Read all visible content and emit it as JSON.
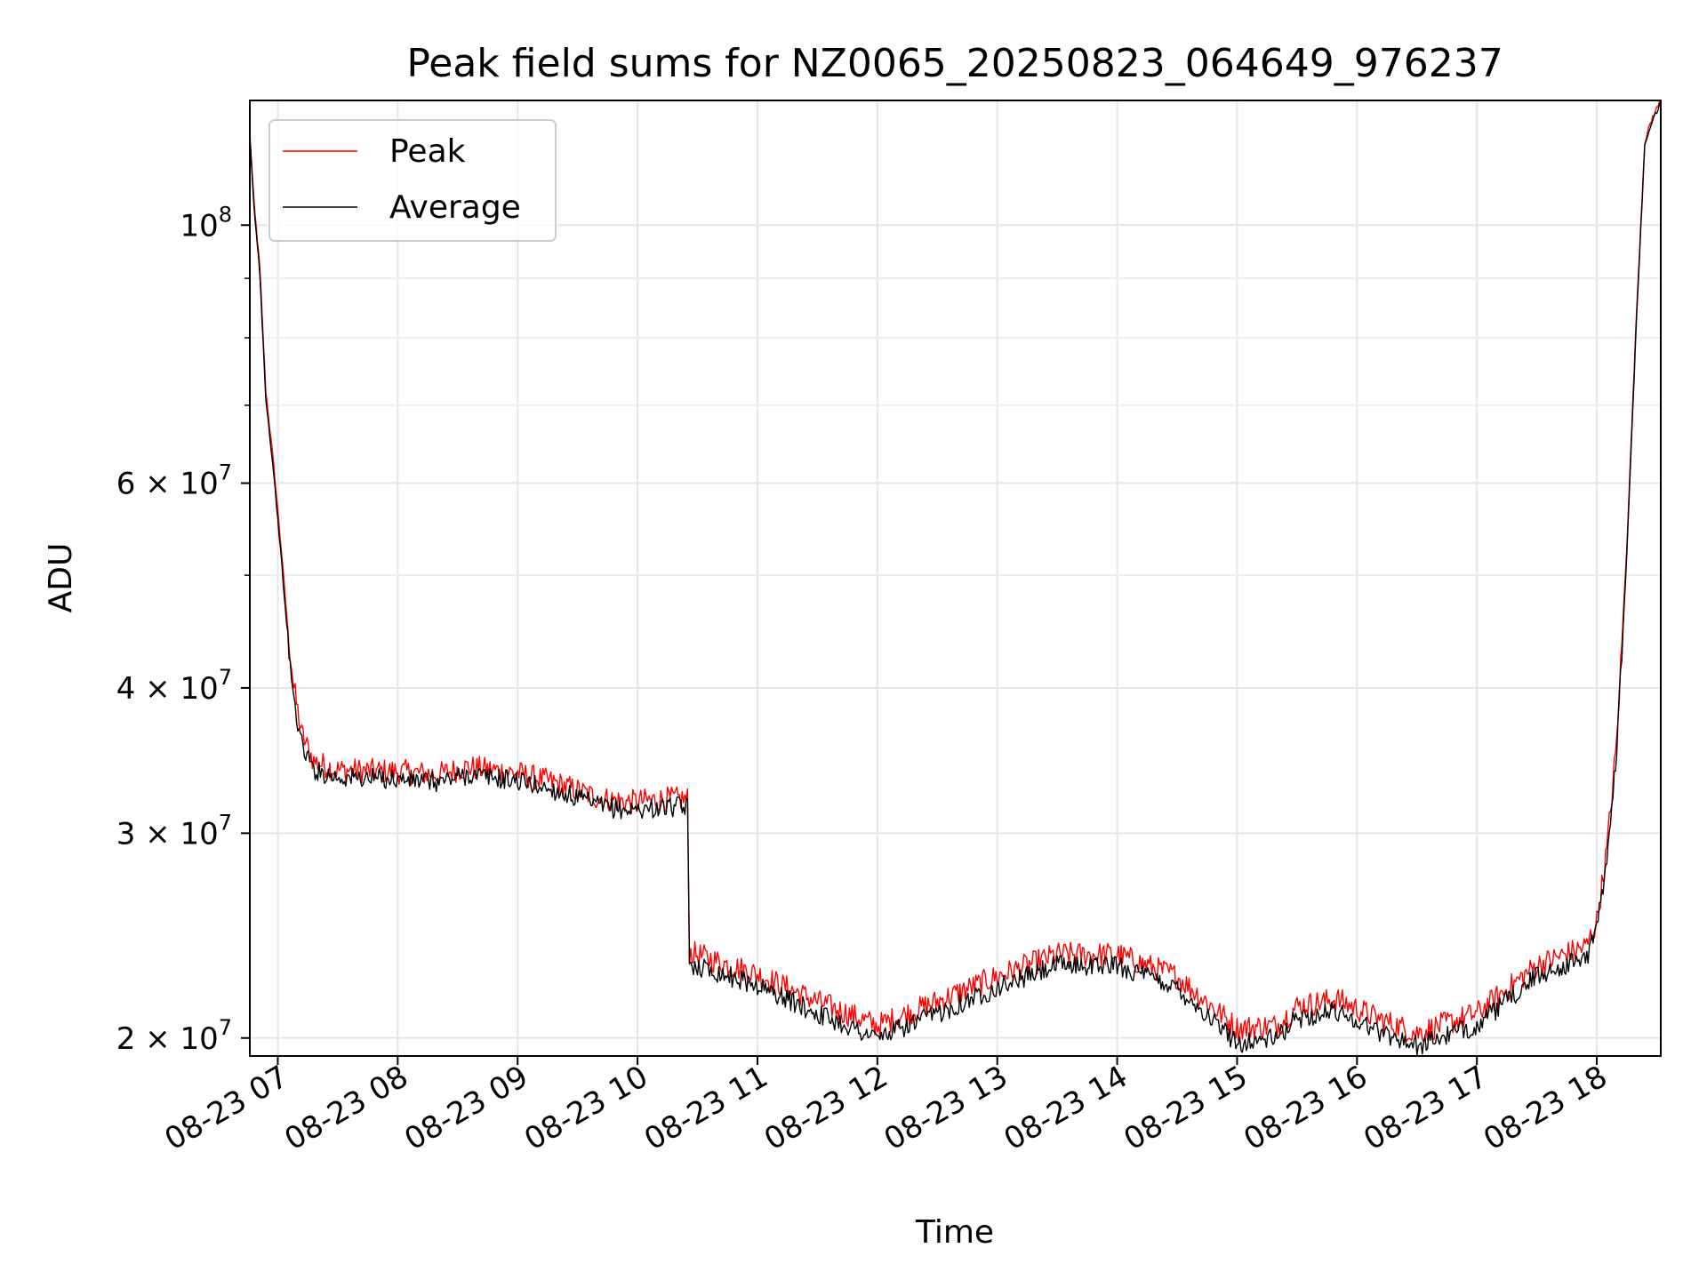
{
  "chart_data": {
    "type": "line",
    "title": "Peak field sums for NZ0065_20250823_064649_976237",
    "xlabel": "Time",
    "ylabel": "ADU",
    "y_scale": "log",
    "grid": true,
    "legend_position": "top-left",
    "xlim": [
      "2025-08-23 06:46",
      "2025-08-23 18:32"
    ],
    "ylim": [
      19300000,
      128000000
    ],
    "x_ticks": [
      "08-23 07",
      "08-23 08",
      "08-23 09",
      "08-23 10",
      "08-23 11",
      "08-23 12",
      "08-23 13",
      "08-23 14",
      "08-23 15",
      "08-23 16",
      "08-23 17",
      "08-23 18"
    ],
    "x_tick_times": [
      "2025-08-23 07:00",
      "2025-08-23 08:00",
      "2025-08-23 09:00",
      "2025-08-23 10:00",
      "2025-08-23 11:00",
      "2025-08-23 12:00",
      "2025-08-23 13:00",
      "2025-08-23 14:00",
      "2025-08-23 15:00",
      "2025-08-23 16:00",
      "2025-08-23 17:00",
      "2025-08-23 18:00"
    ],
    "y_major_ticks": [
      {
        "value": 20000000,
        "mantissa": "2",
        "base": "10",
        "exp": "7"
      },
      {
        "value": 30000000,
        "mantissa": "3",
        "base": "10",
        "exp": "7"
      },
      {
        "value": 40000000,
        "mantissa": "4",
        "base": "10",
        "exp": "7"
      },
      {
        "value": 60000000,
        "mantissa": "6",
        "base": "10",
        "exp": "7"
      },
      {
        "value": 100000000,
        "mantissa": "",
        "base": "10",
        "exp": "8"
      }
    ],
    "y_minor_ticks": [
      50000000,
      70000000,
      80000000,
      90000000
    ],
    "series": [
      {
        "name": "Peak",
        "color": "#ff0000",
        "noise": 0.025,
        "points": [
          [
            "2025-08-23 06:46",
            120000000
          ],
          [
            "2025-08-23 06:48",
            105000000
          ],
          [
            "2025-08-23 06:51",
            92000000
          ],
          [
            "2025-08-23 06:54",
            72000000
          ],
          [
            "2025-08-23 06:58",
            62000000
          ],
          [
            "2025-08-23 07:02",
            52000000
          ],
          [
            "2025-08-23 07:05",
            45000000
          ],
          [
            "2025-08-23 07:08",
            40000000
          ],
          [
            "2025-08-23 07:12",
            36500000
          ],
          [
            "2025-08-23 07:18",
            34600000
          ],
          [
            "2025-08-23 07:30",
            34000000
          ],
          [
            "2025-08-23 08:00",
            33900000
          ],
          [
            "2025-08-23 08:20",
            33700000
          ],
          [
            "2025-08-23 08:35",
            34200000
          ],
          [
            "2025-08-23 09:00",
            33800000
          ],
          [
            "2025-08-23 09:20",
            33100000
          ],
          [
            "2025-08-23 09:40",
            32200000
          ],
          [
            "2025-08-23 09:55",
            31900000
          ],
          [
            "2025-08-23 10:15",
            32100000
          ],
          [
            "2025-08-23 10:25",
            32100000
          ],
          [
            "2025-08-23 10:26",
            23700000
          ],
          [
            "2025-08-23 11:00",
            22700000
          ],
          [
            "2025-08-23 11:30",
            21500000
          ],
          [
            "2025-08-23 12:00",
            20500000
          ],
          [
            "2025-08-23 12:30",
            21500000
          ],
          [
            "2025-08-23 13:00",
            22600000
          ],
          [
            "2025-08-23 13:30",
            23600000
          ],
          [
            "2025-08-23 14:00",
            23600000
          ],
          [
            "2025-08-23 14:30",
            22600000
          ],
          [
            "2025-08-23 15:00",
            20400000
          ],
          [
            "2025-08-23 15:20",
            20500000
          ],
          [
            "2025-08-23 15:30",
            21300000
          ],
          [
            "2025-08-23 15:50",
            21600000
          ],
          [
            "2025-08-23 16:10",
            20800000
          ],
          [
            "2025-08-23 16:30",
            20200000
          ],
          [
            "2025-08-23 17:00",
            21000000
          ],
          [
            "2025-08-23 17:30",
            23100000
          ],
          [
            "2025-08-23 17:55",
            24000000
          ],
          [
            "2025-08-23 18:00",
            25200000
          ],
          [
            "2025-08-23 18:05",
            29000000
          ],
          [
            "2025-08-23 18:10",
            36000000
          ],
          [
            "2025-08-23 18:15",
            53000000
          ],
          [
            "2025-08-23 18:20",
            85000000
          ],
          [
            "2025-08-23 18:24",
            118000000
          ],
          [
            "2025-08-23 18:28",
            124000000
          ],
          [
            "2025-08-23 18:32",
            128000000
          ]
        ]
      },
      {
        "name": "Average",
        "color": "#000000",
        "noise": 0.02,
        "points": [
          [
            "2025-08-23 06:46",
            119000000
          ],
          [
            "2025-08-23 06:48",
            104000000
          ],
          [
            "2025-08-23 06:51",
            91000000
          ],
          [
            "2025-08-23 06:54",
            71000000
          ],
          [
            "2025-08-23 06:58",
            61000000
          ],
          [
            "2025-08-23 07:02",
            51000000
          ],
          [
            "2025-08-23 07:05",
            44000000
          ],
          [
            "2025-08-23 07:08",
            39000000
          ],
          [
            "2025-08-23 07:12",
            35800000
          ],
          [
            "2025-08-23 07:18",
            34000000
          ],
          [
            "2025-08-23 07:30",
            33500000
          ],
          [
            "2025-08-23 08:00",
            33400000
          ],
          [
            "2025-08-23 08:20",
            33200000
          ],
          [
            "2025-08-23 08:35",
            33700000
          ],
          [
            "2025-08-23 09:00",
            33300000
          ],
          [
            "2025-08-23 09:20",
            32600000
          ],
          [
            "2025-08-23 09:40",
            31700000
          ],
          [
            "2025-08-23 09:55",
            31400000
          ],
          [
            "2025-08-23 10:15",
            31600000
          ],
          [
            "2025-08-23 10:25",
            31600000
          ],
          [
            "2025-08-23 10:26",
            23200000
          ],
          [
            "2025-08-23 11:00",
            22200000
          ],
          [
            "2025-08-23 11:30",
            21000000
          ],
          [
            "2025-08-23 12:00",
            20000000
          ],
          [
            "2025-08-23 12:30",
            21000000
          ],
          [
            "2025-08-23 13:00",
            22100000
          ],
          [
            "2025-08-23 13:30",
            23100000
          ],
          [
            "2025-08-23 14:00",
            23100000
          ],
          [
            "2025-08-23 14:30",
            22100000
          ],
          [
            "2025-08-23 15:00",
            19800000
          ],
          [
            "2025-08-23 15:20",
            20000000
          ],
          [
            "2025-08-23 15:30",
            20800000
          ],
          [
            "2025-08-23 15:50",
            21100000
          ],
          [
            "2025-08-23 16:10",
            20300000
          ],
          [
            "2025-08-23 16:30",
            19700000
          ],
          [
            "2025-08-23 17:00",
            20500000
          ],
          [
            "2025-08-23 17:30",
            22600000
          ],
          [
            "2025-08-23 17:55",
            23500000
          ],
          [
            "2025-08-23 18:00",
            24800000
          ],
          [
            "2025-08-23 18:05",
            28600000
          ],
          [
            "2025-08-23 18:10",
            35500000
          ],
          [
            "2025-08-23 18:15",
            52000000
          ],
          [
            "2025-08-23 18:20",
            84000000
          ],
          [
            "2025-08-23 18:24",
            117000000
          ],
          [
            "2025-08-23 18:28",
            123000000
          ],
          [
            "2025-08-23 18:32",
            127500000
          ]
        ]
      }
    ]
  }
}
